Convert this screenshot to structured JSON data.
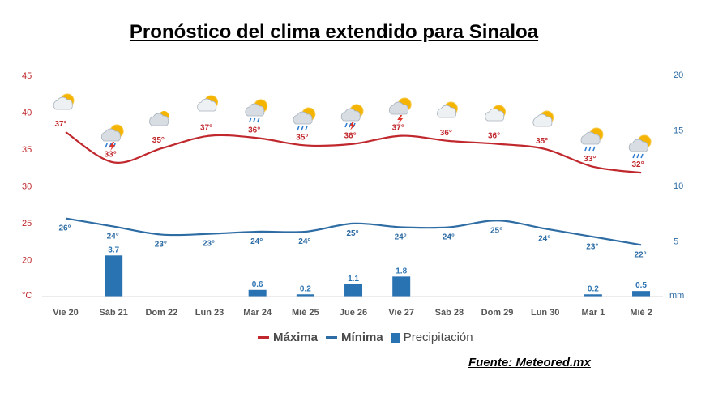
{
  "title": "Pronóstico del clima extendido para Sinaloa",
  "source": "Fuente: Meteored.mx",
  "legend": {
    "max_label": "Máxima",
    "min_label": "Mínima",
    "precip_label": "Precipitación"
  },
  "colors": {
    "max": "#c0282d",
    "min": "#2e6ca4",
    "precip": "#2a73b3",
    "left_axis": "#c0282d",
    "right_axis": "#2e6ca4"
  },
  "chart_data": {
    "type": "line",
    "categories": [
      "Vie 20",
      "Sáb 21",
      "Dom 22",
      "Lun 23",
      "Mar 24",
      "Mié 25",
      "Jue 26",
      "Vie 27",
      "Sáb 28",
      "Dom 29",
      "Lun 30",
      "Mar 1",
      "Mié 2"
    ],
    "left_axis": {
      "unit": "°C",
      "ticks": [
        20,
        25,
        30,
        35,
        40,
        45
      ],
      "range": [
        15,
        45
      ]
    },
    "right_axis": {
      "unit": "mm",
      "ticks": [
        5,
        10,
        15,
        20
      ],
      "range": [
        0,
        20
      ]
    },
    "series": [
      {
        "name": "Máxima",
        "kind": "line",
        "axis": "left",
        "values": [
          37,
          33,
          35,
          37,
          36,
          35,
          36,
          37,
          36,
          36,
          35,
          33,
          32
        ],
        "curve": [
          37.3,
          33.2,
          35.1,
          36.8,
          36.5,
          35.5,
          35.7,
          36.8,
          36.1,
          35.7,
          35.0,
          32.6,
          31.8
        ]
      },
      {
        "name": "Mínima",
        "kind": "line",
        "axis": "left",
        "values": [
          26,
          24,
          23,
          23,
          24,
          24,
          25,
          24,
          24,
          25,
          24,
          23,
          22
        ],
        "curve": [
          25.6,
          24.5,
          23.4,
          23.5,
          23.8,
          23.8,
          24.9,
          24.4,
          24.4,
          25.3,
          24.2,
          23.1,
          22.0
        ]
      },
      {
        "name": "Precipitación",
        "kind": "bar",
        "axis": "right",
        "values": [
          0,
          3.7,
          0,
          0,
          0.6,
          0.2,
          1.1,
          1.8,
          0,
          0,
          0,
          0.2,
          0.5
        ],
        "labels": [
          "",
          "3.7",
          "",
          "",
          "0.6",
          "0.2",
          "1.1",
          "1.8",
          "",
          "",
          "",
          "0.2",
          "0.5"
        ]
      }
    ],
    "icons": [
      "partly-cloudy-icon",
      "storm-rain-icon",
      "cloudy-icon",
      "partly-cloudy-icon",
      "rain-icon",
      "rain-icon",
      "storm-rain-icon",
      "storm-icon",
      "partly-cloudy-icon",
      "partly-cloudy-icon",
      "partly-cloudy-icon",
      "rain-icon",
      "rain-icon"
    ],
    "grid": false,
    "legend_position": "bottom"
  }
}
